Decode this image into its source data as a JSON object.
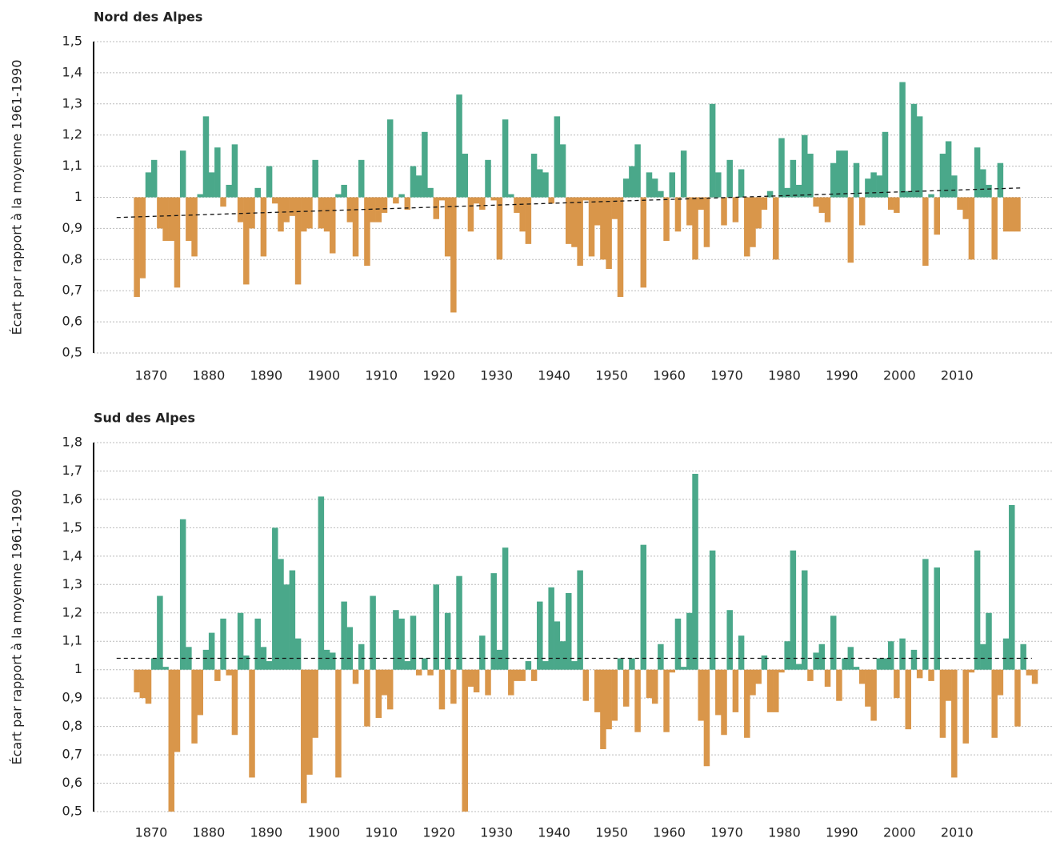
{
  "chart_data": [
    {
      "type": "bar",
      "title": "Nord des Alpes",
      "y_label": "Écart par rapport à la moyenne 1961-1990",
      "baseline": 1,
      "color_above": "#4aa88a",
      "color_below": "#d9964a",
      "grid": true,
      "xlim": [
        1860,
        2026.5
      ],
      "xticks": [
        1870,
        1880,
        1890,
        1900,
        1910,
        1920,
        1930,
        1940,
        1950,
        1960,
        1970,
        1980,
        1990,
        2000,
        2010
      ],
      "ylim": [
        0.5,
        1.5
      ],
      "yticks": [
        {
          "value": 0.5,
          "label": "0,5"
        },
        {
          "value": 0.6,
          "label": "0,6"
        },
        {
          "value": 0.7,
          "label": "0,7"
        },
        {
          "value": 0.8,
          "label": "0,8"
        },
        {
          "value": 0.9,
          "label": "0,9"
        },
        1,
        {
          "value": 1.1,
          "label": "1,1"
        },
        {
          "value": 1.2,
          "label": "1,2"
        },
        {
          "value": 1.3,
          "label": "1,3"
        },
        {
          "value": 1.4,
          "label": "1,4"
        },
        {
          "value": 1.5,
          "label": "1,5"
        }
      ],
      "x": [
        1867,
        1868,
        1869,
        1870,
        1871,
        1872,
        1873,
        1874,
        1875,
        1876,
        1877,
        1878,
        1879,
        1880,
        1881,
        1882,
        1883,
        1884,
        1885,
        1886,
        1887,
        1888,
        1889,
        1890,
        1891,
        1892,
        1893,
        1894,
        1895,
        1896,
        1897,
        1898,
        1899,
        1900,
        1901,
        1902,
        1903,
        1904,
        1905,
        1906,
        1907,
        1908,
        1909,
        1910,
        1911,
        1912,
        1913,
        1914,
        1915,
        1916,
        1917,
        1918,
        1919,
        1920,
        1921,
        1922,
        1923,
        1924,
        1925,
        1926,
        1927,
        1928,
        1929,
        1930,
        1931,
        1932,
        1933,
        1934,
        1935,
        1936,
        1937,
        1938,
        1939,
        1940,
        1941,
        1942,
        1943,
        1944,
        1945,
        1946,
        1947,
        1948,
        1949,
        1950,
        1951,
        1952,
        1953,
        1954,
        1955,
        1956,
        1957,
        1958,
        1959,
        1960,
        1961,
        1962,
        1963,
        1964,
        1965,
        1966,
        1967,
        1968,
        1969,
        1970,
        1971,
        1972,
        1973,
        1974,
        1975,
        1976,
        1977,
        1978,
        1979,
        1980,
        1981,
        1982,
        1983,
        1984,
        1985,
        1986,
        1987,
        1988,
        1989,
        1990,
        1991,
        1992,
        1993,
        1994,
        1995,
        1996,
        1997,
        1998,
        1999,
        2000,
        2001,
        2002,
        2003,
        2004,
        2005,
        2006,
        2007,
        2008,
        2009,
        2010,
        2011,
        2012,
        2013,
        2014,
        2015,
        2016,
        2017,
        2018,
        2019,
        2020
      ],
      "values": [
        0.68,
        0.74,
        1.08,
        1.12,
        0.9,
        0.86,
        0.86,
        0.71,
        1.15,
        0.86,
        0.81,
        1.01,
        1.26,
        1.08,
        1.16,
        0.97,
        1.04,
        1.17,
        0.92,
        0.72,
        0.9,
        1.03,
        0.81,
        1.1,
        0.98,
        0.89,
        0.92,
        0.94,
        0.72,
        0.89,
        0.9,
        1.12,
        0.9,
        0.89,
        0.82,
        1.01,
        1.04,
        0.92,
        0.81,
        1.12,
        0.78,
        0.92,
        0.92,
        0.95,
        1.25,
        0.98,
        1.01,
        0.96,
        1.1,
        1.07,
        1.21,
        1.03,
        0.93,
        0.99,
        0.81,
        0.63,
        1.33,
        1.14,
        0.89,
        0.98,
        0.96,
        1.12,
        0.99,
        0.8,
        1.25,
        1.01,
        0.95,
        0.89,
        0.85,
        1.14,
        1.09,
        1.08,
        0.98,
        1.26,
        1.17,
        0.85,
        0.84,
        0.78,
        0.99,
        0.81,
        0.91,
        0.8,
        0.77,
        0.93,
        0.68,
        1.06,
        1.1,
        1.17,
        0.71,
        1.08,
        1.06,
        1.02,
        0.86,
        1.08,
        0.89,
        1.15,
        0.91,
        0.8,
        0.96,
        0.84,
        1.3,
        1.08,
        0.91,
        1.12,
        0.92,
        1.09,
        0.81,
        0.84,
        0.9,
        0.96,
        1.02,
        0.8,
        1.19,
        1.03,
        1.12,
        1.04,
        1.2,
        1.14,
        0.97,
        0.95,
        0.92,
        1.11,
        1.15,
        1.15,
        0.79,
        1.11,
        0.91,
        1.06,
        1.08,
        1.07,
        1.21,
        0.96,
        0.95,
        1.37,
        1.02,
        1.3,
        1.26,
        0.78,
        1.01,
        0.88,
        1.14,
        1.18,
        1.07,
        0.96,
        0.93,
        0.8,
        1.16,
        1.09,
        1.04,
        0.8,
        1.11,
        0.89,
        0.89,
        0.89
      ],
      "trend": {
        "x": [
          1864,
          2021
        ],
        "values": [
          0.935,
          1.03
        ]
      }
    },
    {
      "type": "bar",
      "title": "Sud des Alpes",
      "y_label": "Écart par rapport à la moyenne 1961-1990",
      "baseline": 1,
      "color_above": "#4aa88a",
      "color_below": "#d9964a",
      "grid": true,
      "xlim": [
        1860,
        2026.5
      ],
      "xticks": [
        1870,
        1880,
        1890,
        1900,
        1910,
        1920,
        1930,
        1940,
        1950,
        1960,
        1970,
        1980,
        1990,
        2000,
        2010
      ],
      "ylim": [
        0.5,
        1.8
      ],
      "yticks": [
        {
          "value": 0.5,
          "label": "0,5"
        },
        {
          "value": 0.6,
          "label": "0,6"
        },
        {
          "value": 0.7,
          "label": "0,7"
        },
        {
          "value": 0.8,
          "label": "0,8"
        },
        {
          "value": 0.9,
          "label": "0,9"
        },
        1,
        {
          "value": 1.1,
          "label": "1,1"
        },
        {
          "value": 1.2,
          "label": "1,2"
        },
        {
          "value": 1.3,
          "label": "1,3"
        },
        {
          "value": 1.4,
          "label": "1,4"
        },
        {
          "value": 1.5,
          "label": "1,5"
        },
        {
          "value": 1.6,
          "label": "1,6"
        },
        {
          "value": 1.7,
          "label": "1,7"
        },
        {
          "value": 1.8,
          "label": "1,8"
        }
      ],
      "x": [
        1867,
        1868,
        1869,
        1870,
        1871,
        1872,
        1873,
        1874,
        1875,
        1876,
        1877,
        1878,
        1879,
        1880,
        1881,
        1882,
        1883,
        1884,
        1885,
        1886,
        1887,
        1888,
        1889,
        1890,
        1891,
        1892,
        1893,
        1894,
        1895,
        1896,
        1897,
        1898,
        1899,
        1900,
        1901,
        1902,
        1903,
        1904,
        1905,
        1906,
        1907,
        1908,
        1909,
        1910,
        1911,
        1912,
        1913,
        1914,
        1915,
        1916,
        1917,
        1918,
        1919,
        1920,
        1921,
        1922,
        1923,
        1924,
        1925,
        1926,
        1927,
        1928,
        1929,
        1930,
        1931,
        1932,
        1933,
        1934,
        1935,
        1936,
        1937,
        1938,
        1939,
        1940,
        1941,
        1942,
        1943,
        1944,
        1945,
        1946,
        1947,
        1948,
        1949,
        1950,
        1951,
        1952,
        1953,
        1954,
        1955,
        1956,
        1957,
        1958,
        1959,
        1960,
        1961,
        1962,
        1963,
        1964,
        1965,
        1966,
        1967,
        1968,
        1969,
        1970,
        1971,
        1972,
        1973,
        1974,
        1975,
        1976,
        1977,
        1978,
        1979,
        1980,
        1981,
        1982,
        1983,
        1984,
        1985,
        1986,
        1987,
        1988,
        1989,
        1990,
        1991,
        1992,
        1993,
        1994,
        1995,
        1996,
        1997,
        1998,
        1999,
        2000,
        2001,
        2002,
        2003,
        2004,
        2005,
        2006,
        2007,
        2008,
        2009,
        2010,
        2011,
        2012,
        2013,
        2014,
        2015,
        2016,
        2017,
        2018,
        2019,
        2020,
        2021,
        2022,
        2023
      ],
      "values": [
        0.92,
        0.9,
        0.88,
        1.04,
        1.26,
        1.01,
        0.5,
        0.71,
        1.53,
        1.08,
        0.74,
        0.84,
        1.07,
        1.13,
        0.96,
        1.18,
        0.98,
        0.77,
        1.2,
        1.05,
        0.62,
        1.18,
        1.08,
        1.03,
        1.5,
        1.39,
        1.3,
        1.35,
        1.11,
        0.53,
        0.63,
        0.76,
        1.61,
        1.07,
        1.06,
        0.62,
        1.24,
        1.15,
        0.95,
        1.09,
        0.8,
        1.26,
        0.83,
        0.91,
        0.86,
        1.21,
        1.18,
        1.03,
        1.19,
        0.98,
        1.04,
        0.98,
        1.3,
        0.86,
        1.2,
        0.88,
        1.33,
        0.5,
        0.94,
        0.92,
        1.12,
        0.91,
        1.34,
        1.07,
        1.43,
        0.91,
        0.96,
        0.96,
        1.03,
        0.96,
        1.24,
        1.03,
        1.29,
        1.17,
        1.1,
        1.27,
        1.03,
        1.35,
        0.89,
        1.0,
        0.85,
        0.72,
        0.79,
        0.82,
        1.04,
        0.87,
        1.04,
        0.78,
        1.44,
        0.9,
        0.88,
        1.09,
        0.78,
        0.99,
        1.18,
        1.01,
        1.2,
        1.69,
        0.82,
        0.66,
        1.42,
        0.84,
        0.77,
        1.21,
        0.85,
        1.12,
        0.76,
        0.91,
        0.95,
        1.05,
        0.85,
        0.85,
        0.99,
        1.1,
        1.42,
        1.02,
        1.35,
        0.96,
        1.06,
        1.09,
        0.94,
        1.19,
        0.89,
        1.04,
        1.08,
        1.01,
        0.95,
        0.87,
        0.82,
        1.04,
        1.04,
        1.1,
        0.9,
        1.11,
        0.79,
        1.07,
        0.97,
        1.39,
        0.96,
        1.36,
        0.76,
        0.89,
        0.62,
        1.0,
        0.74,
        0.99,
        1.42,
        1.09,
        1.2,
        0.76,
        0.91,
        1.11,
        1.58,
        0.8,
        1.09,
        0.98,
        0.95
      ],
      "trend": {
        "x": [
          1864,
          2023
        ],
        "values": [
          1.04,
          1.04
        ]
      }
    }
  ]
}
